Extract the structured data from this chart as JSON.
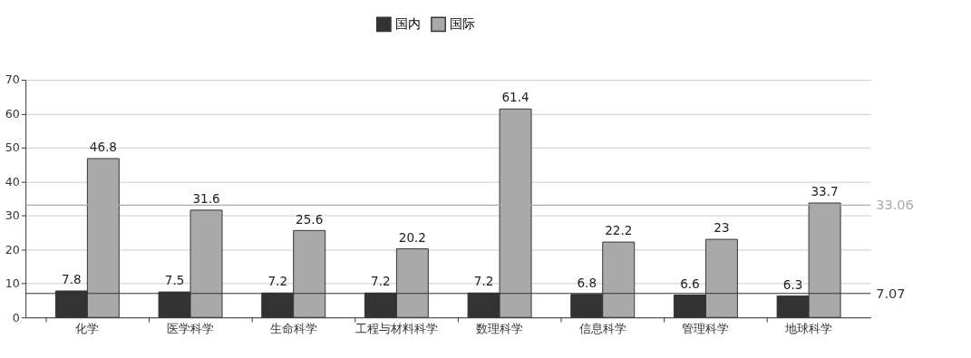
{
  "chart_data": {
    "type": "bar",
    "categories": [
      "化学",
      "医学科学",
      "生命科学",
      "工程与材料科学",
      "数理科学",
      "信息科学",
      "管理科学",
      "地球科学"
    ],
    "series": [
      {
        "name": "国内",
        "color": "#333333",
        "values": [
          7.8,
          7.5,
          7.2,
          7.2,
          7.2,
          6.8,
          6.6,
          6.3
        ]
      },
      {
        "name": "国际",
        "color": "#a9a9a9",
        "values": [
          46.8,
          31.6,
          25.6,
          20.2,
          61.4,
          22.2,
          23,
          33.7
        ]
      }
    ],
    "ylim": [
      0,
      70
    ],
    "yticks": [
      0,
      10,
      20,
      30,
      40,
      50,
      60,
      70
    ],
    "grid": "y",
    "legend": "top",
    "data_labels": true,
    "ref_lines": [
      {
        "axis": "y",
        "value": 33.06,
        "label": "33.06",
        "color": "#a9a9a9"
      },
      {
        "axis": "y",
        "value": 7.07,
        "label": "7.07",
        "color": "#333333"
      }
    ]
  }
}
